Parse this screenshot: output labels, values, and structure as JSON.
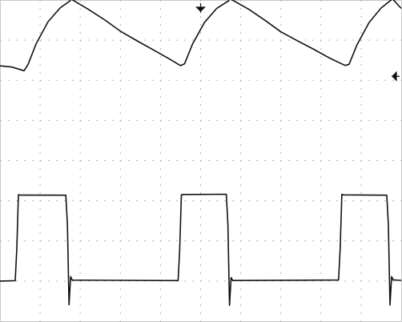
{
  "chart_data": {
    "type": "line",
    "title": "",
    "xlabel": "",
    "ylabel": "",
    "grid": true,
    "grid_divisions": {
      "x": 10,
      "y": 8
    },
    "xlim": [
      0,
      10
    ],
    "ylim": [
      -4,
      4
    ],
    "markers": [
      {
        "name": "trigger-marker",
        "glyph": "down-arrow",
        "x": 5.0
      },
      {
        "name": "level-marker",
        "glyph": "left-arrow",
        "y": 2.1
      }
    ],
    "series": [
      {
        "x": [
          0,
          0.3,
          0.6,
          0.7,
          0.9,
          1.2,
          1.5,
          1.75,
          1.78,
          1.8,
          2.2,
          2.6,
          3.0,
          3.4,
          3.8,
          4.2,
          4.5,
          4.6,
          4.8,
          5.1,
          5.4,
          5.7,
          5.72,
          5.75,
          6.2,
          6.6,
          7.0,
          7.4,
          7.8,
          8.2,
          8.6,
          8.7,
          8.9,
          9.2,
          9.5,
          9.75,
          9.78,
          9.8,
          10.0
        ],
        "values": [
          2.36,
          2.34,
          2.25,
          2.4,
          2.9,
          3.45,
          3.8,
          3.99,
          4.32,
          4.01,
          3.76,
          3.5,
          3.22,
          3.0,
          2.78,
          2.55,
          2.36,
          2.4,
          2.9,
          3.45,
          3.8,
          3.99,
          4.32,
          4.01,
          3.76,
          3.5,
          3.22,
          3.0,
          2.78,
          2.55,
          2.36,
          2.4,
          2.9,
          3.45,
          3.8,
          3.99,
          4.32,
          4.01,
          3.8
        ]
      },
      {
        "x": [
          0,
          0.38,
          0.42,
          0.46,
          0.5,
          1.64,
          1.68,
          1.72,
          1.76,
          1.8,
          4.44,
          4.48,
          4.52,
          4.56,
          5.64,
          5.68,
          5.72,
          5.76,
          5.8,
          8.44,
          8.48,
          8.52,
          8.56,
          9.64,
          9.68,
          9.72,
          9.76,
          9.8,
          10.0
        ],
        "values": [
          -3.0,
          -3.0,
          -2.2,
          -0.85,
          -0.85,
          -0.85,
          -1.6,
          -3.6,
          -2.9,
          -2.98,
          -2.98,
          -2.2,
          -0.85,
          -0.85,
          -0.85,
          -1.6,
          -3.6,
          -2.9,
          -2.98,
          -2.98,
          -2.2,
          -0.85,
          -0.85,
          -0.85,
          -1.6,
          -3.6,
          -2.9,
          -2.98,
          -2.98
        ]
      }
    ]
  }
}
